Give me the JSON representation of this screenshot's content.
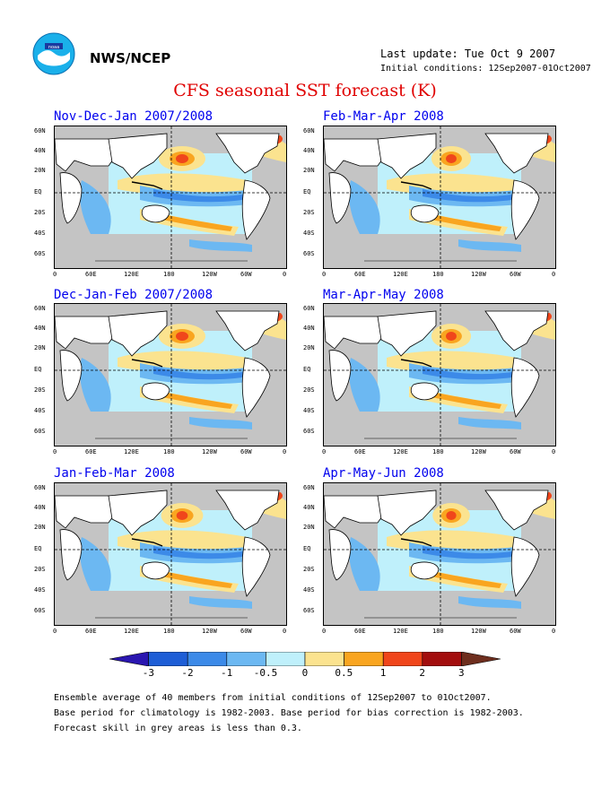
{
  "header": {
    "agency": "NWS/NCEP",
    "last_update": "Last update: Tue Oct  9 2007",
    "initial_conditions": "Initial conditions: 12Sep2007-01Oct2007",
    "title": "CFS seasonal SST forecast (K)"
  },
  "panels": [
    {
      "title": "Nov-Dec-Jan 2007/2008"
    },
    {
      "title": "Feb-Mar-Apr 2008"
    },
    {
      "title": "Dec-Jan-Feb 2007/2008"
    },
    {
      "title": "Mar-Apr-May 2008"
    },
    {
      "title": "Jan-Feb-Mar 2008"
    },
    {
      "title": "Apr-May-Jun 2008"
    }
  ],
  "axes": {
    "lat_labels": [
      "60N",
      "40N",
      "20N",
      "EQ",
      "20S",
      "40S",
      "60S"
    ],
    "lon_labels": [
      "0",
      "60E",
      "120E",
      "180",
      "120W",
      "60W",
      "0"
    ]
  },
  "colorbar": {
    "labels": [
      "-3",
      "-2",
      "-1",
      "-0.5",
      "0",
      "0.5",
      "1",
      "2",
      "3"
    ],
    "colors": [
      "#2a16b0",
      "#1e5ed6",
      "#3c8ae8",
      "#6cb8f2",
      "#bff0fb",
      "#fbe38f",
      "#f9a520",
      "#f0461b",
      "#a30e0e",
      "#6e2e1e"
    ]
  },
  "footer": {
    "line1": "Ensemble average of 40 members from initial conditions of 12Sep2007 to 01Oct2007.",
    "line2": "Base period for climatology is 1982-2003. Base period for bias correction is 1982-2003.",
    "line3": "Forecast skill in grey areas is less than 0.3."
  }
}
